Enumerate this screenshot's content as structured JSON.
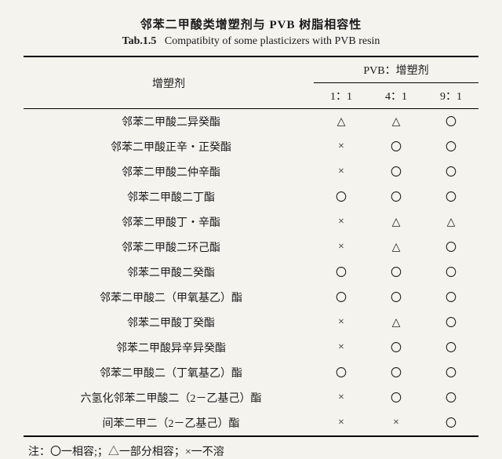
{
  "title_cn": "邻苯二甲酸类增塑剂与 PVB 树脂相容性",
  "title_en_label": "Tab.1.5",
  "title_en_text": "Compatibity of some plasticizers with PVB resin",
  "header": {
    "row_header": "增塑剂",
    "group_header": "PVB：增塑剂",
    "subcols": [
      "1：1",
      "4：1",
      "9：1"
    ]
  },
  "symbols": {
    "compatible": "〇",
    "partial": "△",
    "incompatible": "×"
  },
  "rows": [
    {
      "name": "邻苯二甲酸二异癸酯",
      "vals": [
        "partial",
        "partial",
        "compatible"
      ]
    },
    {
      "name": "邻苯二甲酸正辛・正癸酯",
      "vals": [
        "incompatible",
        "compatible",
        "compatible"
      ]
    },
    {
      "name": "邻苯二甲酸二仲辛酯",
      "vals": [
        "incompatible",
        "compatible",
        "compatible"
      ]
    },
    {
      "name": "邻苯二甲酸二丁酯",
      "vals": [
        "compatible",
        "compatible",
        "compatible"
      ]
    },
    {
      "name": "邻苯二甲酸丁・辛酯",
      "vals": [
        "incompatible",
        "partial",
        "partial"
      ]
    },
    {
      "name": "邻苯二甲酸二环己酯",
      "vals": [
        "incompatible",
        "partial",
        "compatible"
      ]
    },
    {
      "name": "邻苯二甲酸二癸酯",
      "vals": [
        "compatible",
        "compatible",
        "compatible"
      ]
    },
    {
      "name": "邻苯二甲酸二（甲氧基乙）酯",
      "vals": [
        "compatible",
        "compatible",
        "compatible"
      ]
    },
    {
      "name": "邻苯二甲酸丁癸酯",
      "vals": [
        "incompatible",
        "partial",
        "compatible"
      ]
    },
    {
      "name": "邻苯二甲酸异辛异癸酯",
      "vals": [
        "incompatible",
        "compatible",
        "compatible"
      ]
    },
    {
      "name": "邻苯二甲酸二（丁氧基乙）酯",
      "vals": [
        "compatible",
        "compatible",
        "compatible"
      ]
    },
    {
      "name": "六氢化邻苯二甲酸二（2－乙基己）酯",
      "vals": [
        "incompatible",
        "compatible",
        "compatible"
      ]
    },
    {
      "name": "间苯二甲二（2－乙基己）酯",
      "vals": [
        "incompatible",
        "incompatible",
        "compatible"
      ]
    }
  ],
  "footnote": "注：〇一相容;；△一部分相容；×一不溶"
}
